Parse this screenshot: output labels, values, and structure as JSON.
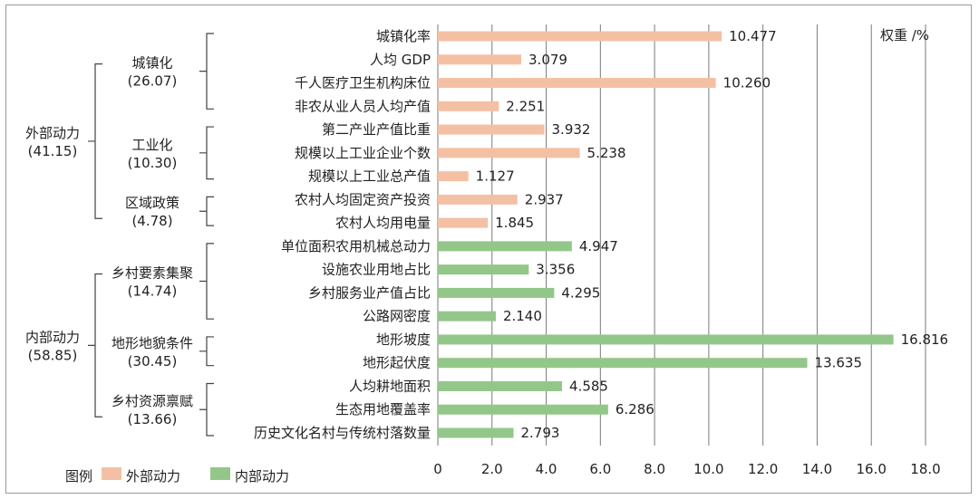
{
  "chart_data": {
    "type": "bar",
    "orientation": "horizontal",
    "xlabel": "权重 /%",
    "xlim": [
      0,
      18
    ],
    "xticks": [
      "0",
      "2.0",
      "4.0",
      "6.0",
      "8.0",
      "10.0",
      "12.0",
      "14.0",
      "16.0",
      "18.0"
    ],
    "grid": true,
    "legend_position": "bottom-left",
    "legend_title": "图例",
    "series": [
      {
        "name": "外部动力",
        "color": "#f4c0a4"
      },
      {
        "name": "内部动力",
        "color": "#93c789"
      }
    ],
    "categories": [
      "城镇化率",
      "人均 GDP",
      "千人医疗卫生机构床位",
      "非农从业人员人均产值",
      "第二产业产值比重",
      "规模以上工业企业个数",
      "规模以上工业总产值",
      "农村人均固定资产投资",
      "农村人均用电量",
      "单位面积农用机械总动力",
      "设施农业用地占比",
      "乡村服务业产值占比",
      "公路网密度",
      "地形坡度",
      "地形起伏度",
      "人均耕地面积",
      "生态用地覆盖率",
      "历史文化名村与传统村落数量"
    ],
    "values": [
      10.477,
      3.079,
      10.26,
      2.251,
      3.932,
      5.238,
      1.127,
      2.937,
      1.845,
      4.947,
      3.356,
      4.295,
      2.14,
      16.816,
      13.635,
      4.585,
      6.286,
      2.793
    ],
    "value_labels": [
      "10.477",
      "3.079",
      "10.260",
      "2.251",
      "3.932",
      "5.238",
      "1.127",
      "2.937",
      "1.845",
      "4.947",
      "3.356",
      "4.295",
      "2.140",
      "16.816",
      "13.635",
      "4.585",
      "6.286",
      "2.793"
    ],
    "bar_series": [
      0,
      0,
      0,
      0,
      0,
      0,
      0,
      0,
      0,
      1,
      1,
      1,
      1,
      1,
      1,
      1,
      1,
      1
    ],
    "groups_level1": [
      {
        "name": "外部动力",
        "weight": "(41.15)",
        "from": 0,
        "to": 8
      },
      {
        "name": "内部动力",
        "weight": "(58.85)",
        "from": 9,
        "to": 17
      }
    ],
    "groups_level2": [
      {
        "name": "城镇化",
        "weight": "(26.07)",
        "from": 0,
        "to": 3
      },
      {
        "name": "工业化",
        "weight": "(10.30)",
        "from": 4,
        "to": 6
      },
      {
        "name": "区域政策",
        "weight": "(4.78)",
        "from": 7,
        "to": 8
      },
      {
        "name": "乡村要素集聚",
        "weight": "(14.74)",
        "from": 9,
        "to": 12
      },
      {
        "name": "地形地貌条件",
        "weight": "(30.45)",
        "from": 13,
        "to": 14
      },
      {
        "name": "乡村资源禀赋",
        "weight": "(13.66)",
        "from": 15,
        "to": 17
      }
    ]
  }
}
